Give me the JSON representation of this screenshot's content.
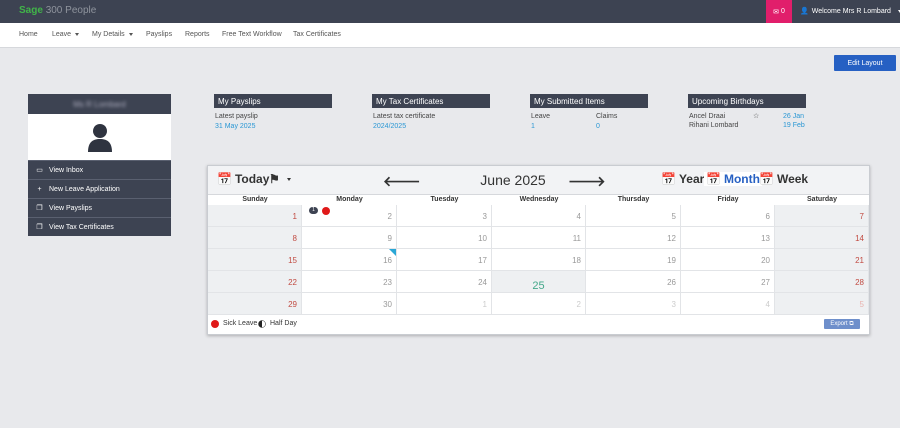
{
  "header": {
    "brand_sage": "Sage",
    "brand_product": "300 People",
    "mail_count": "0",
    "welcome": "Welcome Mrs R Lombard"
  },
  "nav": [
    {
      "label": "Home"
    },
    {
      "label": "Leave",
      "dropdown": true
    },
    {
      "label": "My Details",
      "dropdown": true
    },
    {
      "label": "Payslips"
    },
    {
      "label": "Reports"
    },
    {
      "label": "Free Text Workflow"
    },
    {
      "label": "Tax Certificates"
    }
  ],
  "edit_layout": "Edit Layout",
  "profile": {
    "name": "Ms R Lombard",
    "links": [
      {
        "icon": "inbox-icon",
        "glyph": "▭",
        "label": "View Inbox"
      },
      {
        "icon": "plus-icon",
        "glyph": "+",
        "label": "New Leave Application"
      },
      {
        "icon": "copy-icon",
        "glyph": "❐",
        "label": "View Payslips"
      },
      {
        "icon": "copy-icon",
        "glyph": "❐",
        "label": "View Tax Certificates"
      }
    ]
  },
  "cards": {
    "payslips": {
      "title": "My Payslips",
      "label": "Latest payslip",
      "value": "31 May 2025"
    },
    "tax": {
      "title": "My Tax Certificates",
      "label": "Latest tax certificate",
      "value": "2024/2025"
    },
    "submitted": {
      "title": "My Submitted Items",
      "leave_label": "Leave",
      "leave_value": "1",
      "claims_label": "Claims",
      "claims_value": "0"
    },
    "birthdays": {
      "title": "Upcoming Birthdays",
      "people": [
        {
          "name": "Ancel Draai",
          "date": "26 Jan"
        },
        {
          "name": "Rihani Lombard",
          "date": "19 Feb"
        }
      ]
    }
  },
  "calendar": {
    "today": "Today",
    "title": "June 2025",
    "views": [
      "Year",
      "Month",
      "Week"
    ],
    "active_view": "Month",
    "weekdays": [
      "Sunday",
      "Monday",
      "Tuesday",
      "Wednesday",
      "Thursday",
      "Friday",
      "Saturday"
    ],
    "weeks": [
      [
        "1",
        "2",
        "3",
        "4",
        "5",
        "6",
        "7"
      ],
      [
        "8",
        "9",
        "10",
        "11",
        "12",
        "13",
        "14"
      ],
      [
        "15",
        "16",
        "17",
        "18",
        "19",
        "20",
        "21"
      ],
      [
        "22",
        "23",
        "24",
        "25",
        "26",
        "27",
        "28"
      ],
      [
        "29",
        "30",
        "1",
        "2",
        "3",
        "4",
        "5"
      ]
    ],
    "today_date": "25",
    "event_badge": "1",
    "legend": {
      "sick": "Sick Leave",
      "half": "Half Day"
    },
    "export": "Export",
    "colors": {
      "sick": "#e01919",
      "accent": "#2660c3",
      "weekend_text": "#c14b42",
      "today_text": "#44a88a"
    }
  }
}
